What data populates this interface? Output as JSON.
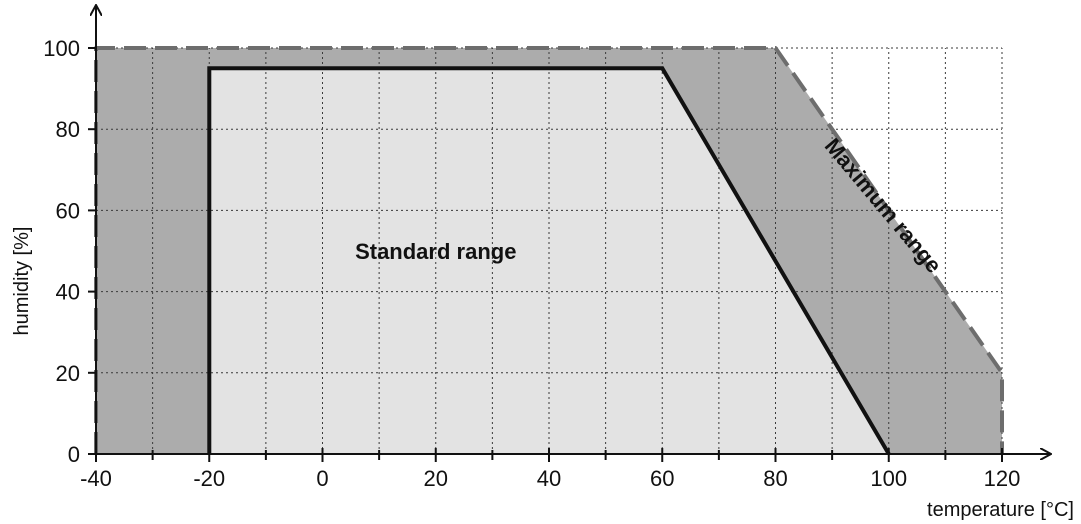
{
  "chart_data": {
    "type": "area",
    "xlabel": "temperature [°C]",
    "ylabel": "humidity [%]",
    "xlim": [
      -40,
      120
    ],
    "ylim": [
      0,
      100
    ],
    "x_ticks": [
      -40,
      -20,
      0,
      20,
      40,
      60,
      80,
      100,
      120
    ],
    "x_minor_ticks": [
      -30,
      -10,
      10,
      30,
      50,
      70,
      90,
      110
    ],
    "y_ticks": [
      0,
      20,
      40,
      60,
      80,
      100
    ],
    "grid": true,
    "colors": {
      "maximum_fill": "#acacac",
      "maximum_edge": "#6d6d6d",
      "standard_fill": "#e3e3e3",
      "standard_edge": "#111111"
    },
    "series": [
      {
        "name": "Maximum range",
        "style": "dashed outline, dark gray fill",
        "points": [
          [
            -40,
            0
          ],
          [
            -40,
            100
          ],
          [
            80,
            100
          ],
          [
            120,
            20
          ],
          [
            120,
            0
          ]
        ]
      },
      {
        "name": "Standard range",
        "style": "solid black outline, light gray fill",
        "points": [
          [
            -20,
            0
          ],
          [
            -20,
            95
          ],
          [
            60,
            95
          ],
          [
            100,
            0
          ]
        ]
      }
    ],
    "annotations": [
      {
        "text": "Standard range",
        "x": 20,
        "y": 50
      },
      {
        "text": "Maximum range",
        "x": 98,
        "y": 60,
        "rotation": -50
      }
    ]
  }
}
